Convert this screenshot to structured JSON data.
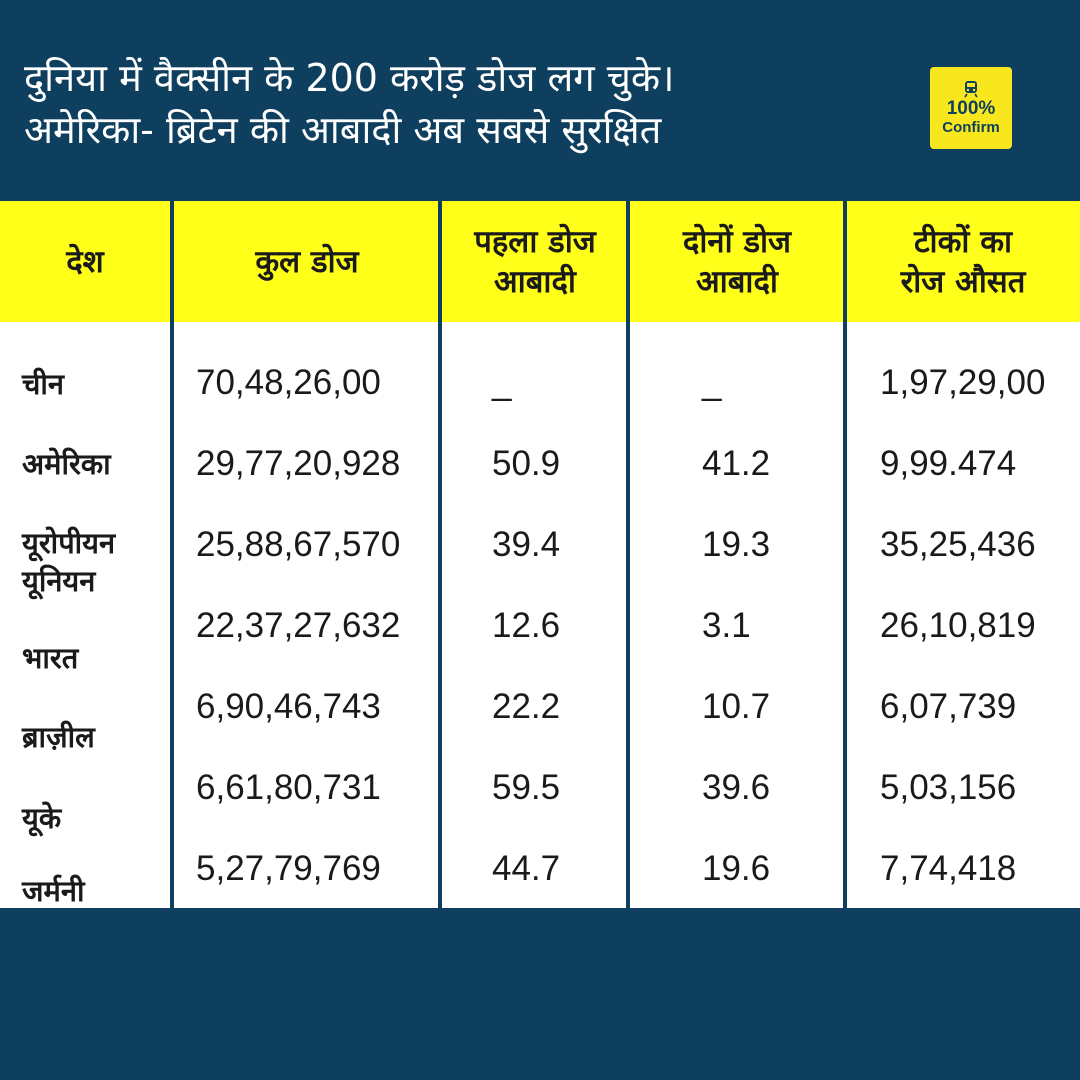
{
  "headline": {
    "line1": "दुनिया में वैक्सीन के 200 करोड़ डोज लग चुके।",
    "line2": "अमेरिका- ब्रिटेन की आबादी अब सबसे सुरक्षित"
  },
  "badge": {
    "icon": "train-icon",
    "percent": "100%",
    "word": "Confirm",
    "color": "#f8e71c"
  },
  "table": {
    "headers": {
      "country": "देश",
      "total": "कुल डोज",
      "first_line1": "पहला डोज",
      "first_line2": "आबादी",
      "both_line1": "दोनों डोज",
      "both_line2": "आबादी",
      "daily_line1": "टीकों का",
      "daily_line2": "रोज औसत"
    },
    "rows": [
      {
        "country": "चीन",
        "total": "70,48,26,00",
        "first": "_",
        "both": "_",
        "daily": "1,97,29,00"
      },
      {
        "country": "अमेरिका",
        "total": "29,77,20,928",
        "first": "50.9",
        "both": "41.2",
        "daily": "9,99.474"
      },
      {
        "country": "यूरोपीयन",
        "country2": "यूनियन",
        "total": "25,88,67,570",
        "first": "39.4",
        "both": "19.3",
        "daily": "35,25,436"
      },
      {
        "country": "भारत",
        "total": "22,37,27,632",
        "first": "12.6",
        "both": "3.1",
        "daily": "26,10,819"
      },
      {
        "country": "ब्राज़ील",
        "total": "6,90,46,743",
        "first": "22.2",
        "both": "10.7",
        "daily": "6,07,739"
      },
      {
        "country": "यूके",
        "total": "6,61,80,731",
        "first": "59.5",
        "both": "39.6",
        "daily": "5,03,156"
      },
      {
        "country": "जर्मनी",
        "total": "5,27,79,769",
        "first": "44.7",
        "both": "19.6",
        "daily": "7,74,418"
      }
    ]
  },
  "colors": {
    "background": "#0e3f5e",
    "header": "#ffff1a",
    "text": "#1a1a1a"
  }
}
